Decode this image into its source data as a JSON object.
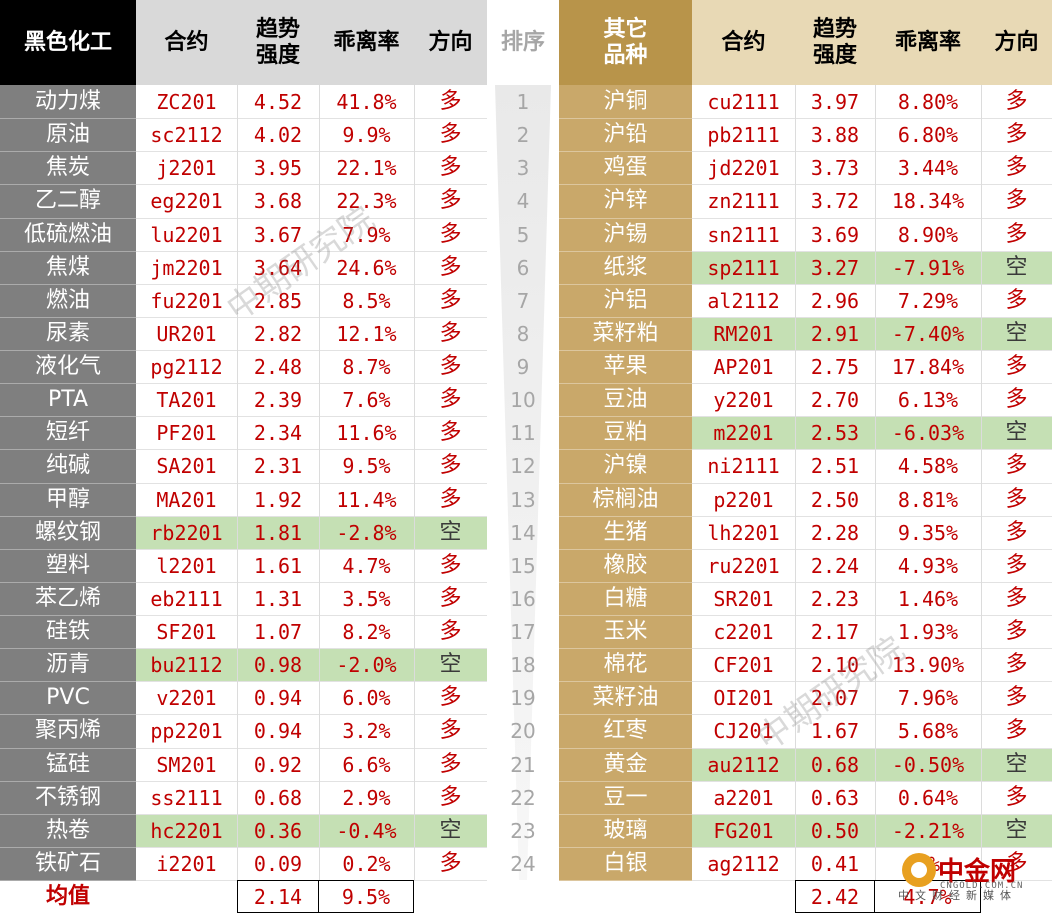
{
  "headers": {
    "left_category": "黑色化工",
    "contract": "合约",
    "strength_line1": "趋势",
    "strength_line2": "强度",
    "deviation": "乖离率",
    "direction": "方向",
    "rank": "排序",
    "right_category_line1": "其它",
    "right_category_line2": "品种"
  },
  "left_rows": [
    {
      "name": "动力煤",
      "contract": "ZC201",
      "strength": "4.52",
      "deviation": "41.8%",
      "direction": "多",
      "highlight": false
    },
    {
      "name": "原油",
      "contract": "sc2112",
      "strength": "4.02",
      "deviation": "9.9%",
      "direction": "多",
      "highlight": false
    },
    {
      "name": "焦炭",
      "contract": "j2201",
      "strength": "3.95",
      "deviation": "22.1%",
      "direction": "多",
      "highlight": false
    },
    {
      "name": "乙二醇",
      "contract": "eg2201",
      "strength": "3.68",
      "deviation": "22.3%",
      "direction": "多",
      "highlight": false
    },
    {
      "name": "低硫燃油",
      "contract": "lu2201",
      "strength": "3.67",
      "deviation": "7.9%",
      "direction": "多",
      "highlight": false
    },
    {
      "name": "焦煤",
      "contract": "jm2201",
      "strength": "3.64",
      "deviation": "24.6%",
      "direction": "多",
      "highlight": false
    },
    {
      "name": "燃油",
      "contract": "fu2201",
      "strength": "2.85",
      "deviation": "8.5%",
      "direction": "多",
      "highlight": false
    },
    {
      "name": "尿素",
      "contract": "UR201",
      "strength": "2.82",
      "deviation": "12.1%",
      "direction": "多",
      "highlight": false
    },
    {
      "name": "液化气",
      "contract": "pg2112",
      "strength": "2.48",
      "deviation": "8.7%",
      "direction": "多",
      "highlight": false
    },
    {
      "name": "PTA",
      "contract": "TA201",
      "strength": "2.39",
      "deviation": "7.6%",
      "direction": "多",
      "highlight": false
    },
    {
      "name": "短纤",
      "contract": "PF201",
      "strength": "2.34",
      "deviation": "11.6%",
      "direction": "多",
      "highlight": false
    },
    {
      "name": "纯碱",
      "contract": "SA201",
      "strength": "2.31",
      "deviation": "9.5%",
      "direction": "多",
      "highlight": false
    },
    {
      "name": "甲醇",
      "contract": "MA201",
      "strength": "1.92",
      "deviation": "11.4%",
      "direction": "多",
      "highlight": false
    },
    {
      "name": "螺纹钢",
      "contract": "rb2201",
      "strength": "1.81",
      "deviation": "-2.8%",
      "direction": "空",
      "highlight": true
    },
    {
      "name": "塑料",
      "contract": "l2201",
      "strength": "1.61",
      "deviation": "4.7%",
      "direction": "多",
      "highlight": false
    },
    {
      "name": "苯乙烯",
      "contract": "eb2111",
      "strength": "1.31",
      "deviation": "3.5%",
      "direction": "多",
      "highlight": false
    },
    {
      "name": "硅铁",
      "contract": "SF201",
      "strength": "1.07",
      "deviation": "8.2%",
      "direction": "多",
      "highlight": false
    },
    {
      "name": "沥青",
      "contract": "bu2112",
      "strength": "0.98",
      "deviation": "-2.0%",
      "direction": "空",
      "highlight": true
    },
    {
      "name": "PVC",
      "contract": "v2201",
      "strength": "0.94",
      "deviation": "6.0%",
      "direction": "多",
      "highlight": false
    },
    {
      "name": "聚丙烯",
      "contract": "pp2201",
      "strength": "0.94",
      "deviation": "3.2%",
      "direction": "多",
      "highlight": false
    },
    {
      "name": "锰硅",
      "contract": "SM201",
      "strength": "0.92",
      "deviation": "6.6%",
      "direction": "多",
      "highlight": false
    },
    {
      "name": "不锈钢",
      "contract": "ss2111",
      "strength": "0.68",
      "deviation": "2.9%",
      "direction": "多",
      "highlight": false
    },
    {
      "name": "热卷",
      "contract": "hc2201",
      "strength": "0.36",
      "deviation": "-0.4%",
      "direction": "空",
      "highlight": true
    },
    {
      "name": "铁矿石",
      "contract": "i2201",
      "strength": "0.09",
      "deviation": "0.2%",
      "direction": "多",
      "highlight": false
    }
  ],
  "right_rows": [
    {
      "name": "沪铜",
      "contract": "cu2111",
      "strength": "3.97",
      "deviation": "8.80%",
      "direction": "多",
      "highlight": false
    },
    {
      "name": "沪铅",
      "contract": "pb2111",
      "strength": "3.88",
      "deviation": "6.80%",
      "direction": "多",
      "highlight": false
    },
    {
      "name": "鸡蛋",
      "contract": "jd2201",
      "strength": "3.73",
      "deviation": "3.44%",
      "direction": "多",
      "highlight": false
    },
    {
      "name": "沪锌",
      "contract": "zn2111",
      "strength": "3.72",
      "deviation": "18.34%",
      "direction": "多",
      "highlight": false
    },
    {
      "name": "沪锡",
      "contract": "sn2111",
      "strength": "3.69",
      "deviation": "8.90%",
      "direction": "多",
      "highlight": false
    },
    {
      "name": "纸浆",
      "contract": "sp2111",
      "strength": "3.27",
      "deviation": "-7.91%",
      "direction": "空",
      "highlight": true
    },
    {
      "name": "沪铝",
      "contract": "al2112",
      "strength": "2.96",
      "deviation": "7.29%",
      "direction": "多",
      "highlight": false
    },
    {
      "name": "菜籽粕",
      "contract": "RM201",
      "strength": "2.91",
      "deviation": "-7.40%",
      "direction": "空",
      "highlight": true
    },
    {
      "name": "苹果",
      "contract": "AP201",
      "strength": "2.75",
      "deviation": "17.84%",
      "direction": "多",
      "highlight": false
    },
    {
      "name": "豆油",
      "contract": "y2201",
      "strength": "2.70",
      "deviation": "6.13%",
      "direction": "多",
      "highlight": false
    },
    {
      "name": "豆粕",
      "contract": "m2201",
      "strength": "2.53",
      "deviation": "-6.03%",
      "direction": "空",
      "highlight": true
    },
    {
      "name": "沪镍",
      "contract": "ni2111",
      "strength": "2.51",
      "deviation": "4.58%",
      "direction": "多",
      "highlight": false
    },
    {
      "name": "棕榈油",
      "contract": "p2201",
      "strength": "2.50",
      "deviation": "8.81%",
      "direction": "多",
      "highlight": false
    },
    {
      "name": "生猪",
      "contract": "lh2201",
      "strength": "2.28",
      "deviation": "9.35%",
      "direction": "多",
      "highlight": false
    },
    {
      "name": "橡胶",
      "contract": "ru2201",
      "strength": "2.24",
      "deviation": "4.93%",
      "direction": "多",
      "highlight": false
    },
    {
      "name": "白糖",
      "contract": "SR201",
      "strength": "2.23",
      "deviation": "1.46%",
      "direction": "多",
      "highlight": false
    },
    {
      "name": "玉米",
      "contract": "c2201",
      "strength": "2.17",
      "deviation": "1.93%",
      "direction": "多",
      "highlight": false
    },
    {
      "name": "棉花",
      "contract": "CF201",
      "strength": "2.10",
      "deviation": "13.90%",
      "direction": "多",
      "highlight": false
    },
    {
      "name": "菜籽油",
      "contract": "OI201",
      "strength": "2.07",
      "deviation": "7.96%",
      "direction": "多",
      "highlight": false
    },
    {
      "name": "红枣",
      "contract": "CJ201",
      "strength": "1.67",
      "deviation": "5.68%",
      "direction": "多",
      "highlight": false
    },
    {
      "name": "黄金",
      "contract": "au2112",
      "strength": "0.68",
      "deviation": "-0.50%",
      "direction": "空",
      "highlight": true
    },
    {
      "name": "豆一",
      "contract": "a2201",
      "strength": "0.63",
      "deviation": "0.64%",
      "direction": "多",
      "highlight": false
    },
    {
      "name": "玻璃",
      "contract": "FG201",
      "strength": "0.50",
      "deviation": "-2.21%",
      "direction": "空",
      "highlight": true
    },
    {
      "name": "白银",
      "contract": "ag2112",
      "strength": "0.41",
      "deviation": "3%",
      "direction": "多",
      "highlight": false
    }
  ],
  "ranks": [
    "1",
    "2",
    "3",
    "4",
    "5",
    "6",
    "7",
    "8",
    "9",
    "10",
    "11",
    "12",
    "13",
    "14",
    "15",
    "16",
    "17",
    "18",
    "19",
    "20",
    "21",
    "22",
    "23",
    "24"
  ],
  "average": {
    "label": "均值",
    "left_strength": "2.14",
    "left_deviation": "9.5%",
    "right_strength": "2.42",
    "right_deviation": "4.7%"
  },
  "watermark_text": "中期研究院",
  "logo": {
    "name": "中金网",
    "domain": "CNGOLD.COM.CN",
    "subtitle": "中文财经新媒体"
  },
  "colors": {
    "left_category_header_bg": "#000000",
    "left_name_bg": "#7f7f7f",
    "right_category_header_bg": "#b8944a",
    "right_name_bg": "#c9a86a",
    "left_header_bg": "#d9d9d9",
    "right_header_bg": "#e8d9b5",
    "highlight_green": "#c5e0b4",
    "value_red": "#c00000"
  }
}
